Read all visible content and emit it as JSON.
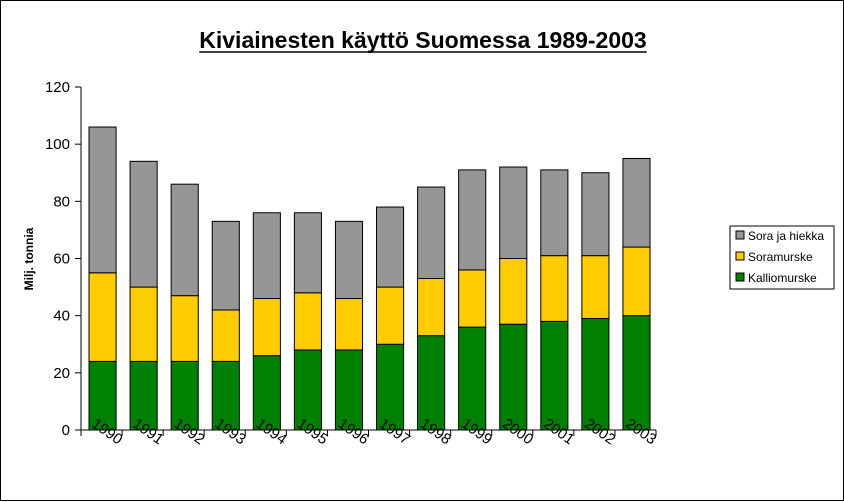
{
  "chart_data": {
    "type": "bar",
    "stacked": true,
    "title": "Kiviainesten käyttö Suomessa 1989-2003",
    "xlabel": "",
    "ylabel": "Milj. tonnia",
    "ylim": [
      0,
      120
    ],
    "yticks": [
      0,
      20,
      40,
      60,
      80,
      100,
      120
    ],
    "grid": false,
    "legend_position": "right",
    "categories": [
      "1990",
      "1991",
      "1992",
      "1993",
      "1994",
      "1995",
      "1996",
      "1997",
      "1998",
      "1999",
      "2000",
      "2001",
      "2002",
      "2003"
    ],
    "series": [
      {
        "name": "Kalliomurske",
        "color": "#008000",
        "values": [
          24,
          24,
          24,
          24,
          26,
          28,
          28,
          30,
          33,
          36,
          37,
          38,
          39,
          40
        ]
      },
      {
        "name": "Soramurske",
        "color": "#ffcc00",
        "values": [
          31,
          26,
          23,
          18,
          20,
          20,
          18,
          20,
          20,
          20,
          23,
          23,
          22,
          24
        ]
      },
      {
        "name": "Sora ja hiekka",
        "color": "#969696",
        "values": [
          51,
          44,
          39,
          31,
          30,
          28,
          27,
          28,
          32,
          35,
          32,
          30,
          29,
          31
        ]
      }
    ],
    "legend_order": [
      "Sora ja hiekka",
      "Soramurske",
      "Kalliomurske"
    ]
  }
}
